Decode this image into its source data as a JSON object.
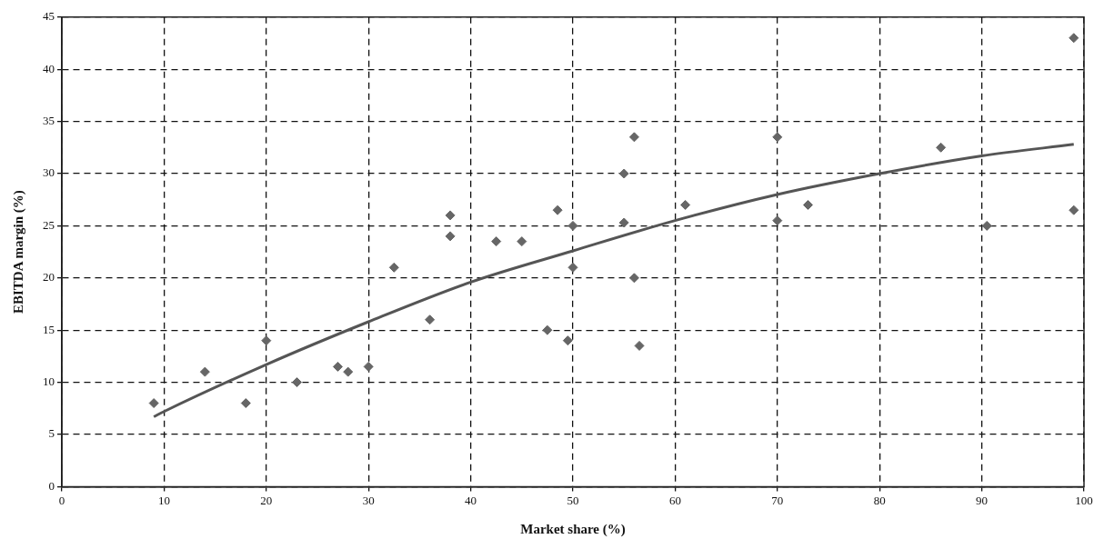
{
  "chart_data": {
    "type": "scatter",
    "xlabel": "Market share (%)",
    "ylabel": "EBITDA margin (%)",
    "xlim": [
      0,
      100
    ],
    "xticks": [
      0,
      10,
      20,
      30,
      40,
      50,
      60,
      70,
      80,
      90,
      100
    ],
    "ylim": [
      0,
      45
    ],
    "yticks": [
      0,
      5,
      10,
      15,
      20,
      25,
      30,
      35,
      40,
      45
    ],
    "grid": true,
    "marker": "diamond",
    "series": [
      {
        "color": "#666666",
        "x": [
          9,
          14,
          18,
          20,
          23,
          27,
          28,
          30,
          32.5,
          36,
          38,
          38,
          42.5,
          45,
          47.5,
          48.5,
          49.5,
          50,
          50,
          55,
          55,
          56,
          56,
          56.5,
          61,
          70,
          70,
          73,
          86,
          90.5,
          99,
          99
        ],
        "values": [
          8,
          11,
          8,
          14,
          10,
          11.5,
          11,
          11.5,
          21,
          16,
          26,
          24,
          23.5,
          23.5,
          15,
          26.5,
          14,
          25,
          21,
          30,
          25.3,
          33.5,
          20,
          13.5,
          27,
          33.5,
          25.5,
          27,
          32.5,
          25,
          43,
          26.5
        ]
      },
      {
        "type": "line",
        "color": "#555555",
        "marker": "none",
        "x": [
          9,
          10,
          20,
          30,
          40,
          50,
          60,
          70,
          80,
          90,
          99
        ],
        "values": [
          6.7,
          7.2,
          11.7,
          15.8,
          19.6,
          22.6,
          25.5,
          28,
          30,
          31.7,
          32.8
        ]
      }
    ]
  }
}
